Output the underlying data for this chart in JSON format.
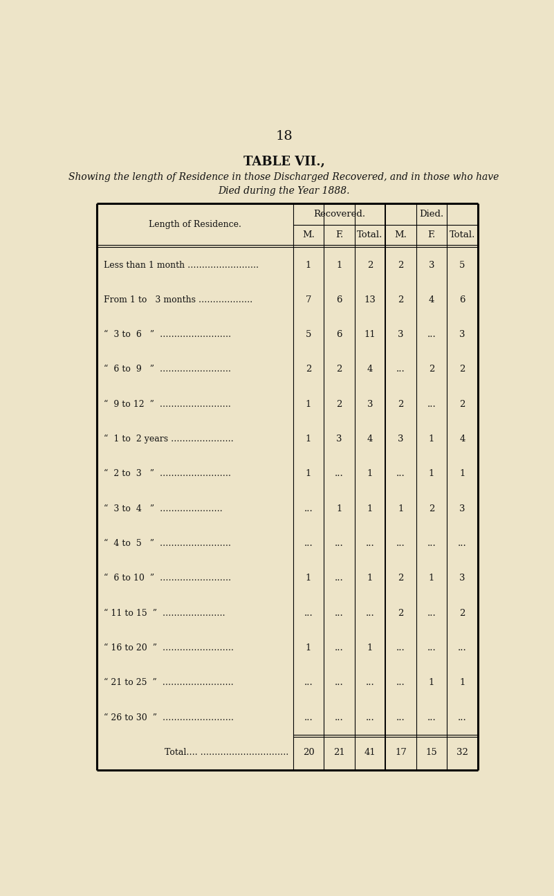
{
  "page_number": "18",
  "title": "TABLE VII.,",
  "subtitle_line1": "Showing the length of Residence in those Discharged Recovered, and in those who have",
  "subtitle_line2": "Died during the Year 1888.",
  "bg_color": "#ede4c8",
  "text_color": "#111111",
  "row_label_header": "Length of Residence.",
  "col_header_row1_rec": "Recovered.",
  "col_header_row1_died": "Died.",
  "col_header_row2": [
    "M.",
    "F.",
    "Total.",
    "M.",
    "F.",
    "Total."
  ],
  "rows": [
    {
      "label": "Less than 1 month …………………….",
      "vals": [
        "1",
        "1",
        "2",
        "2",
        "3",
        "5"
      ]
    },
    {
      "label": "From 1 to   3 months ……………….",
      "vals": [
        "7",
        "6",
        "13",
        "2",
        "4",
        "6"
      ]
    },
    {
      "label": "“  3 to  6   ”  …………………….",
      "vals": [
        "5",
        "6",
        "11",
        "3",
        "...",
        "3"
      ]
    },
    {
      "label": "“  6 to  9   ”  …………………….",
      "vals": [
        "2",
        "2",
        "4",
        "...",
        "2",
        "2"
      ]
    },
    {
      "label": "“  9 to 12  ”  …………………….",
      "vals": [
        "1",
        "2",
        "3",
        "2",
        "...",
        "2"
      ]
    },
    {
      "label": "“  1 to  2 years ………………….",
      "vals": [
        "1",
        "3",
        "4",
        "3",
        "1",
        "4"
      ]
    },
    {
      "label": "“  2 to  3   ”  …………………….",
      "vals": [
        "1",
        "...",
        "1",
        "...",
        "1",
        "1"
      ]
    },
    {
      "label": "“  3 to  4   ”  ………………….",
      "vals": [
        "...",
        "1",
        "1",
        "1",
        "2",
        "3"
      ]
    },
    {
      "label": "“  4 to  5   ”  …………………….",
      "vals": [
        "...",
        "...",
        "...",
        "...",
        "...",
        "..."
      ]
    },
    {
      "label": "“  6 to 10  ”  …………………….",
      "vals": [
        "1",
        "...",
        "1",
        "2",
        "1",
        "3"
      ]
    },
    {
      "label": "“ 11 to 15  ”  ………………….",
      "vals": [
        "...",
        "...",
        "...",
        "2",
        "...",
        "2"
      ]
    },
    {
      "label": "“ 16 to 20  ”  …………………….",
      "vals": [
        "1",
        "...",
        "1",
        "...",
        "...",
        "..."
      ]
    },
    {
      "label": "“ 21 to 25  ”  …………………….",
      "vals": [
        "...",
        "...",
        "...",
        "...",
        "1",
        "1"
      ]
    },
    {
      "label": "“ 26 to 30  ”  …………………….",
      "vals": [
        "...",
        "...",
        "...",
        "...",
        "...",
        "..."
      ]
    }
  ],
  "total_row": {
    "label": "Total…. ………………………….",
    "vals": [
      "20",
      "21",
      "41",
      "17",
      "15",
      "32"
    ]
  }
}
